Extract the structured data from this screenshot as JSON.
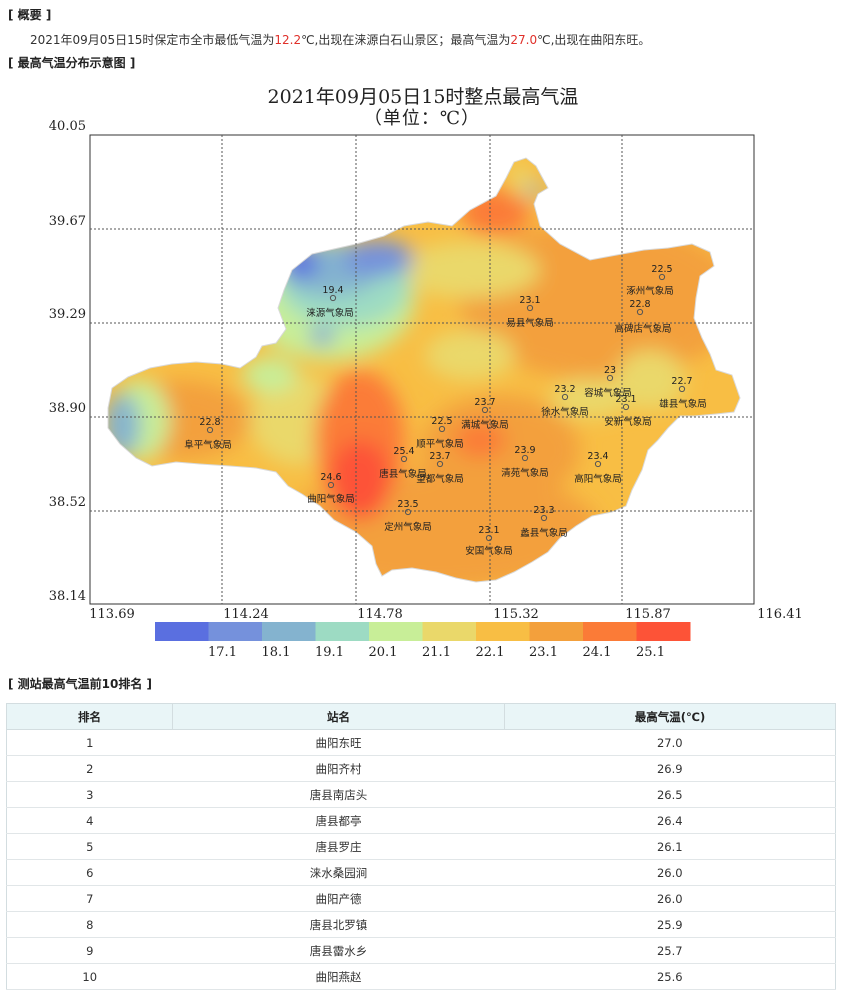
{
  "overview": {
    "heading": "[ 概要 ]",
    "text_1": "2021年09月05日15时保定市全市最低气温为",
    "min_temp": "12.2",
    "text_2": "℃,出现在涞源白石山景区；最高气温为",
    "max_temp": "27.0",
    "text_3": "℃,出现在曲阳东旺。",
    "highlight_color": "#e0302a"
  },
  "map_section": {
    "heading": "[ 最高气温分布示意图 ]",
    "title": "2021年09月05日15时整点最高气温",
    "subtitle": "（单位：℃）",
    "y_ticks": [
      "40.05",
      "39.67",
      "39.29",
      "38.90",
      "38.52",
      "38.14"
    ],
    "x_ticks": [
      "113.69",
      "114.24",
      "114.78",
      "115.32",
      "115.87",
      "116.41"
    ],
    "legend_labels": [
      "17.1",
      "18.1",
      "19.1",
      "20.1",
      "21.1",
      "22.1",
      "23.1",
      "24.1",
      "25.1"
    ],
    "legend_colors": [
      "#5a6fe0",
      "#7591dc",
      "#84b3cf",
      "#9ddbc3",
      "#c8ee98",
      "#ead86a",
      "#f8be44",
      "#f3a03c",
      "#fb7b37",
      "#fd5337"
    ],
    "stations": [
      {
        "name": "涞源气象局",
        "value": "19.4"
      },
      {
        "name": "易县气象局",
        "value": "23.1"
      },
      {
        "name": "涿州气象局",
        "value": "22.5"
      },
      {
        "name": "高碑店气象局",
        "value": "22.8"
      },
      {
        "name": "容城气象局",
        "value": "23"
      },
      {
        "name": "徐水气象局",
        "value": "23.2"
      },
      {
        "name": "安新气象局",
        "value": "23.1"
      },
      {
        "name": "雄县气象局",
        "value": "22.7"
      },
      {
        "name": "阜平气象局",
        "value": "22.8"
      },
      {
        "name": "满城气象局",
        "value": "23.7"
      },
      {
        "name": "顺平气象局",
        "value": "22.5"
      },
      {
        "name": "唐县气象局",
        "value": "25.4"
      },
      {
        "name": "望都气象局",
        "value": "23.7"
      },
      {
        "name": "清苑气象局",
        "value": "23.9"
      },
      {
        "name": "高阳气象局",
        "value": "23.4"
      },
      {
        "name": "曲阳气象局",
        "value": "24.6"
      },
      {
        "name": "定州气象局",
        "value": "23.5"
      },
      {
        "name": "蠡县气象局",
        "value": "23.3"
      },
      {
        "name": "安国气象局",
        "value": "23.1"
      }
    ]
  },
  "ranking": {
    "heading": "[ 测站最高气温前10排名 ]",
    "columns": [
      "排名",
      "站名",
      "最高气温(℃)"
    ],
    "rows": [
      {
        "rank": "1",
        "station": "曲阳东旺",
        "temp": "27.0"
      },
      {
        "rank": "2",
        "station": "曲阳齐村",
        "temp": "26.9"
      },
      {
        "rank": "3",
        "station": "唐县南店头",
        "temp": "26.5"
      },
      {
        "rank": "4",
        "station": "唐县都亭",
        "temp": "26.4"
      },
      {
        "rank": "5",
        "station": "唐县罗庄",
        "temp": "26.1"
      },
      {
        "rank": "6",
        "station": "涞水桑园涧",
        "temp": "26.0"
      },
      {
        "rank": "7",
        "station": "曲阳产德",
        "temp": "26.0"
      },
      {
        "rank": "8",
        "station": "唐县北罗镇",
        "temp": "25.9"
      },
      {
        "rank": "9",
        "station": "唐县霤水乡",
        "temp": "25.7"
      },
      {
        "rank": "10",
        "station": "曲阳燕赵",
        "temp": "25.6"
      }
    ]
  }
}
